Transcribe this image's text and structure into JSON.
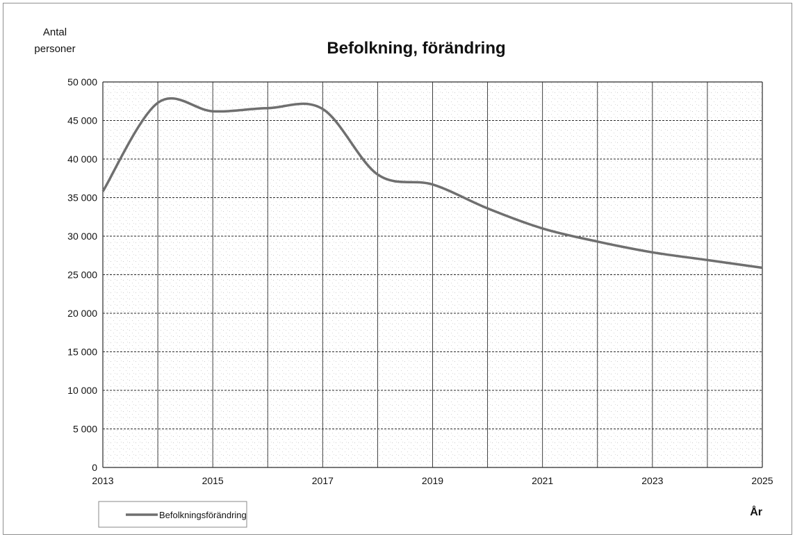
{
  "chart_data": {
    "type": "line",
    "title": "Befolkning, förändring",
    "ylabel_lines": [
      "Antal",
      "personer"
    ],
    "xlabel": "År",
    "xlim": [
      2013,
      2025
    ],
    "ylim": [
      0,
      50000
    ],
    "y_ticks": [
      0,
      5000,
      10000,
      15000,
      20000,
      25000,
      30000,
      35000,
      40000,
      45000,
      50000
    ],
    "y_tick_labels": [
      "0",
      "5 000",
      "10 000",
      "15 000",
      "20 000",
      "25 000",
      "30 000",
      "35 000",
      "40 000",
      "45 000",
      "50 000"
    ],
    "x_ticks": [
      2013,
      2015,
      2017,
      2019,
      2021,
      2023,
      2025
    ],
    "x_tick_labels": [
      "2013",
      "2015",
      "2017",
      "2019",
      "2021",
      "2023",
      "2025"
    ],
    "grid": true,
    "legend_position": "bottom-left",
    "series": [
      {
        "name": "Befolkningsförändring",
        "color": "#6f6f6f",
        "x": [
          2013,
          2014,
          2015,
          2016,
          2017,
          2018,
          2019,
          2020,
          2021,
          2022,
          2023,
          2024,
          2025
        ],
        "y": [
          35800,
          47300,
          46200,
          46600,
          46500,
          38000,
          36700,
          33600,
          31000,
          29300,
          27900,
          26900,
          25900
        ]
      }
    ]
  }
}
